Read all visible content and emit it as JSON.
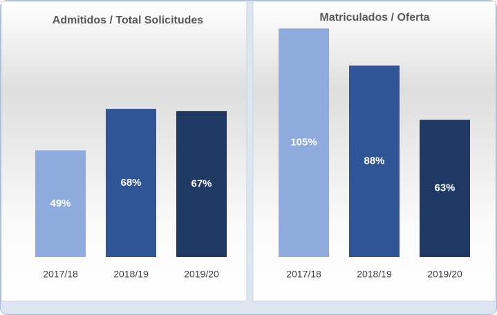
{
  "chart_data": [
    {
      "type": "bar",
      "title": "Admitidos / Total Solicitudes",
      "categories": [
        "2017/18",
        "2018/19",
        "2019/20"
      ],
      "values": [
        49,
        68,
        67
      ],
      "value_labels": [
        "49%",
        "68%",
        "67%"
      ],
      "colors": [
        "#8faadc",
        "#2f5597",
        "#1f3864"
      ]
    },
    {
      "type": "bar",
      "title": "Matriculados / Oferta",
      "categories": [
        "2017/18",
        "2018/19",
        "2019/20"
      ],
      "values": [
        105,
        88,
        63
      ],
      "value_labels": [
        "105%",
        "88%",
        "63%"
      ],
      "colors": [
        "#8faadc",
        "#2f5597",
        "#1f3864"
      ]
    }
  ]
}
